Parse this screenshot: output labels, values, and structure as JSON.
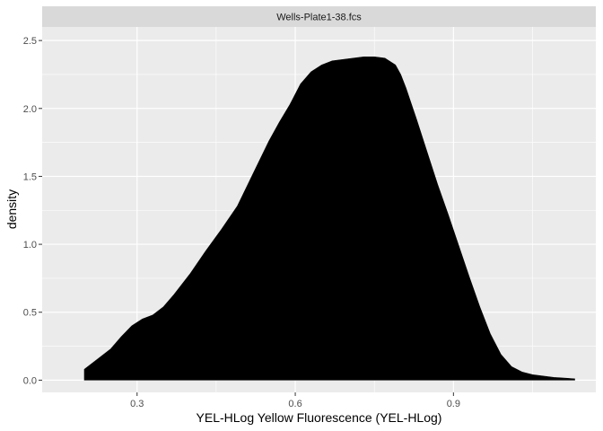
{
  "chart_data": {
    "type": "area",
    "facet_label": "Wells-Plate1-38.fcs",
    "xlabel": "YEL-HLog Yellow Fluorescence (YEL-HLog)",
    "ylabel": "density",
    "xlim": [
      0.12,
      1.17
    ],
    "ylim": [
      -0.09,
      2.6
    ],
    "x_ticks": [
      0.3,
      0.6,
      0.9
    ],
    "x_tick_labels": [
      "0.3",
      "0.6",
      "0.9"
    ],
    "x_minor_ticks": [
      0.45,
      0.75,
      1.05
    ],
    "y_ticks": [
      0.0,
      0.5,
      1.0,
      1.5,
      2.0,
      2.5
    ],
    "y_tick_labels": [
      "0.0",
      "0.5",
      "1.0",
      "1.5",
      "2.0",
      "2.5"
    ],
    "y_minor_ticks": [
      0.25,
      0.75,
      1.25,
      1.75,
      2.25
    ],
    "grid": true,
    "fill_color": "#000000",
    "panel_background": "#ebebeb",
    "strip_background": "#d9d9d9",
    "series": [
      {
        "x": [
          0.2,
          0.22,
          0.25,
          0.27,
          0.29,
          0.31,
          0.33,
          0.35,
          0.37,
          0.4,
          0.43,
          0.46,
          0.49,
          0.52,
          0.55,
          0.57,
          0.59,
          0.61,
          0.63,
          0.65,
          0.67,
          0.69,
          0.71,
          0.73,
          0.75,
          0.77,
          0.79,
          0.8,
          0.81,
          0.83,
          0.85,
          0.87,
          0.89,
          0.91,
          0.93,
          0.95,
          0.97,
          0.99,
          1.01,
          1.03,
          1.05,
          1.07,
          1.09,
          1.11,
          1.13
        ],
        "y": [
          0.08,
          0.14,
          0.23,
          0.32,
          0.4,
          0.45,
          0.48,
          0.54,
          0.63,
          0.78,
          0.95,
          1.11,
          1.28,
          1.52,
          1.76,
          1.9,
          2.03,
          2.18,
          2.27,
          2.32,
          2.35,
          2.36,
          2.37,
          2.38,
          2.38,
          2.37,
          2.32,
          2.25,
          2.15,
          1.92,
          1.68,
          1.44,
          1.22,
          0.99,
          0.76,
          0.54,
          0.34,
          0.19,
          0.1,
          0.06,
          0.04,
          0.03,
          0.02,
          0.015,
          0.01
        ]
      }
    ]
  }
}
